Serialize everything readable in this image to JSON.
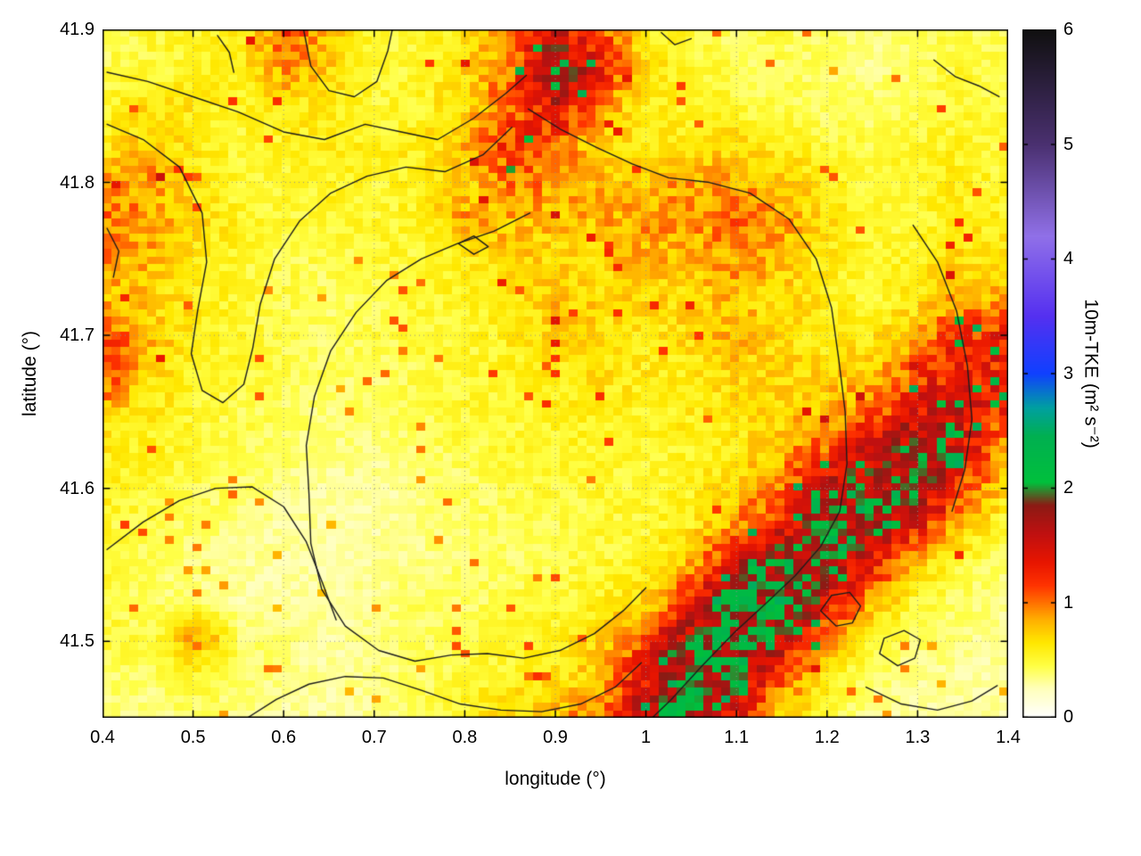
{
  "chart_data": {
    "type": "heatmap",
    "title": "",
    "xlabel": "longitude (°)",
    "ylabel": "latitude (°)",
    "colorbar_label": "10m-TKE (m² s⁻²)",
    "xlim": [
      0.4,
      1.4
    ],
    "ylim": [
      41.45,
      41.9
    ],
    "zlim": [
      0,
      6
    ],
    "grid_on": true,
    "x_ticks": [
      {
        "value": 0.4,
        "label": "0.4"
      },
      {
        "value": 0.5,
        "label": "0.5"
      },
      {
        "value": 0.6,
        "label": "0.6"
      },
      {
        "value": 0.7,
        "label": "0.7"
      },
      {
        "value": 0.8,
        "label": "0.8"
      },
      {
        "value": 0.9,
        "label": "0.9"
      },
      {
        "value": 1.0,
        "label": "1"
      },
      {
        "value": 1.1,
        "label": "1.1"
      },
      {
        "value": 1.2,
        "label": "1.2"
      },
      {
        "value": 1.3,
        "label": "1.3"
      },
      {
        "value": 1.4,
        "label": "1.4"
      }
    ],
    "y_ticks": [
      {
        "value": 41.5,
        "label": "41.5"
      },
      {
        "value": 41.6,
        "label": "41.6"
      },
      {
        "value": 41.7,
        "label": "41.7"
      },
      {
        "value": 41.8,
        "label": "41.8"
      },
      {
        "value": 41.9,
        "label": "41.9"
      }
    ],
    "cb_ticks": [
      {
        "value": 0,
        "label": "0"
      },
      {
        "value": 1,
        "label": "1"
      },
      {
        "value": 2,
        "label": "2"
      },
      {
        "value": 3,
        "label": "3"
      },
      {
        "value": 4,
        "label": "4"
      },
      {
        "value": 5,
        "label": "5"
      },
      {
        "value": 6,
        "label": "6"
      }
    ],
    "colormap": [
      [
        0.0,
        "#ffffff"
      ],
      [
        0.25,
        "#ffffbb"
      ],
      [
        0.45,
        "#ffff44"
      ],
      [
        0.65,
        "#ffe800"
      ],
      [
        0.85,
        "#ffb000"
      ],
      [
        1.0,
        "#ff7000"
      ],
      [
        1.15,
        "#ff3300"
      ],
      [
        1.35,
        "#e81500"
      ],
      [
        1.6,
        "#c01010"
      ],
      [
        1.85,
        "#8c1a14"
      ],
      [
        2.05,
        "#00c03c"
      ],
      [
        2.45,
        "#00b050"
      ],
      [
        2.7,
        "#00a0a0"
      ],
      [
        3.0,
        "#1040ff"
      ],
      [
        3.5,
        "#5530f0"
      ],
      [
        4.2,
        "#9070e8"
      ],
      [
        5.0,
        "#4a3070"
      ],
      [
        6.0,
        "#101010"
      ]
    ],
    "grid": {
      "lon0": 0.4,
      "dlon": 0.05,
      "lat0": 41.9,
      "dlat": -0.025,
      "ncols": 21,
      "nrows": 19,
      "values": [
        [
          0.4,
          0.5,
          0.5,
          0.6,
          1.1,
          0.8,
          0.5,
          0.5,
          0.6,
          0.9,
          1.5,
          1.2,
          0.6,
          0.5,
          0.4,
          0.45,
          0.4,
          0.35,
          0.4,
          0.45,
          0.4
        ],
        [
          0.45,
          0.5,
          0.55,
          0.6,
          0.9,
          0.7,
          0.5,
          0.5,
          0.7,
          1.0,
          2.0,
          1.3,
          0.7,
          0.5,
          0.45,
          0.4,
          0.4,
          0.35,
          0.4,
          0.5,
          0.45
        ],
        [
          0.5,
          0.7,
          0.6,
          0.55,
          0.6,
          0.6,
          0.5,
          0.55,
          0.7,
          1.1,
          1.4,
          0.9,
          0.6,
          0.55,
          0.5,
          0.45,
          0.4,
          0.4,
          0.45,
          0.5,
          0.45
        ],
        [
          0.6,
          0.8,
          0.6,
          0.5,
          0.55,
          0.6,
          0.55,
          0.6,
          0.8,
          1.2,
          1.0,
          0.7,
          0.6,
          0.6,
          0.7,
          0.6,
          0.5,
          0.45,
          0.5,
          0.55,
          0.5
        ],
        [
          0.9,
          0.9,
          0.6,
          0.5,
          0.5,
          0.55,
          0.5,
          0.6,
          0.7,
          1.0,
          0.9,
          0.8,
          0.8,
          0.9,
          0.9,
          0.8,
          0.6,
          0.5,
          0.55,
          0.6,
          0.5
        ],
        [
          1.0,
          0.9,
          0.7,
          0.55,
          0.5,
          0.5,
          0.5,
          0.55,
          0.9,
          0.8,
          0.8,
          0.8,
          0.9,
          0.9,
          1.0,
          0.9,
          0.7,
          0.5,
          0.5,
          0.6,
          0.6
        ],
        [
          0.9,
          0.8,
          0.6,
          0.5,
          0.45,
          0.45,
          0.5,
          0.5,
          0.6,
          0.7,
          0.7,
          0.7,
          0.8,
          0.8,
          0.9,
          0.8,
          0.6,
          0.5,
          0.55,
          0.7,
          0.6
        ],
        [
          0.8,
          0.7,
          0.6,
          0.5,
          0.45,
          0.4,
          0.45,
          0.5,
          0.55,
          0.6,
          0.8,
          0.7,
          0.7,
          0.7,
          0.8,
          0.7,
          0.6,
          0.5,
          0.6,
          0.9,
          0.8
        ],
        [
          1.1,
          0.8,
          0.6,
          0.5,
          0.45,
          0.4,
          0.45,
          0.5,
          0.5,
          0.6,
          0.7,
          0.7,
          0.6,
          0.7,
          0.8,
          0.7,
          0.6,
          0.6,
          0.8,
          1.2,
          1.3
        ],
        [
          1.2,
          0.7,
          0.55,
          0.5,
          0.45,
          0.4,
          0.4,
          0.45,
          0.5,
          0.55,
          0.6,
          0.65,
          0.6,
          0.6,
          0.7,
          0.7,
          0.7,
          0.8,
          1.1,
          1.4,
          1.3
        ],
        [
          0.7,
          0.6,
          0.5,
          0.45,
          0.4,
          0.35,
          0.4,
          0.45,
          0.5,
          0.5,
          0.55,
          0.6,
          0.55,
          0.6,
          0.65,
          0.7,
          0.8,
          1.0,
          1.4,
          1.5,
          1.2
        ],
        [
          0.6,
          0.55,
          0.5,
          0.45,
          0.4,
          0.35,
          0.35,
          0.4,
          0.45,
          0.5,
          0.5,
          0.55,
          0.5,
          0.55,
          0.6,
          0.8,
          1.1,
          1.5,
          1.9,
          1.5,
          0.9
        ],
        [
          0.6,
          0.5,
          0.45,
          0.4,
          0.35,
          0.3,
          0.3,
          0.35,
          0.4,
          0.45,
          0.5,
          0.5,
          0.5,
          0.55,
          0.7,
          1.0,
          1.5,
          1.9,
          1.8,
          1.2,
          0.7
        ],
        [
          0.5,
          0.45,
          0.4,
          0.35,
          0.3,
          0.3,
          0.3,
          0.35,
          0.4,
          0.4,
          0.45,
          0.5,
          0.5,
          0.6,
          0.9,
          1.3,
          1.8,
          1.9,
          1.4,
          0.8,
          0.5
        ],
        [
          0.5,
          0.4,
          0.35,
          0.3,
          0.3,
          0.28,
          0.3,
          0.35,
          0.4,
          0.4,
          0.45,
          0.5,
          0.55,
          0.8,
          1.4,
          2.0,
          1.9,
          1.4,
          0.8,
          0.5,
          0.4
        ],
        [
          0.45,
          0.4,
          0.35,
          0.3,
          0.3,
          0.3,
          0.35,
          0.4,
          0.4,
          0.45,
          0.5,
          0.55,
          0.7,
          1.2,
          2.0,
          2.1,
          1.5,
          0.9,
          0.5,
          0.4,
          0.35
        ],
        [
          0.5,
          0.45,
          0.9,
          0.4,
          0.35,
          0.3,
          0.35,
          0.4,
          0.45,
          0.5,
          0.55,
          0.7,
          1.1,
          1.8,
          2.1,
          1.7,
          1.0,
          0.5,
          0.4,
          0.35,
          0.3
        ],
        [
          0.4,
          0.4,
          0.5,
          0.4,
          0.35,
          0.3,
          0.35,
          0.4,
          0.5,
          0.55,
          0.6,
          0.8,
          1.4,
          2.0,
          1.8,
          1.1,
          0.6,
          0.4,
          0.35,
          0.3,
          0.3
        ],
        [
          0.35,
          0.35,
          0.4,
          0.35,
          0.3,
          0.3,
          0.35,
          0.45,
          0.55,
          0.7,
          0.8,
          1.0,
          1.7,
          2.0,
          1.4,
          0.8,
          0.5,
          0.35,
          0.3,
          0.3,
          0.3
        ]
      ]
    },
    "contours": [
      [
        [
          0.405,
          41.872
        ],
        [
          0.45,
          41.866
        ],
        [
          0.5,
          41.856
        ],
        [
          0.55,
          41.846
        ],
        [
          0.6,
          41.833
        ],
        [
          0.645,
          41.828
        ],
        [
          0.69,
          41.838
        ],
        [
          0.73,
          41.833
        ],
        [
          0.77,
          41.828
        ],
        [
          0.81,
          41.842
        ],
        [
          0.845,
          41.858
        ],
        [
          0.868,
          41.87
        ]
      ],
      [
        [
          0.405,
          41.838
        ],
        [
          0.445,
          41.828
        ],
        [
          0.485,
          41.81
        ],
        [
          0.51,
          41.78
        ],
        [
          0.515,
          41.748
        ],
        [
          0.505,
          41.716
        ],
        [
          0.498,
          41.688
        ],
        [
          0.51,
          41.664
        ],
        [
          0.533,
          41.656
        ],
        [
          0.556,
          41.668
        ],
        [
          0.566,
          41.692
        ],
        [
          0.574,
          41.72
        ],
        [
          0.59,
          41.75
        ],
        [
          0.618,
          41.775
        ],
        [
          0.652,
          41.793
        ],
        [
          0.692,
          41.804
        ],
        [
          0.735,
          41.81
        ],
        [
          0.778,
          41.807
        ],
        [
          0.82,
          41.818
        ],
        [
          0.852,
          41.836
        ]
      ],
      [
        [
          0.622,
          41.9
        ],
        [
          0.63,
          41.876
        ],
        [
          0.65,
          41.86
        ],
        [
          0.678,
          41.856
        ],
        [
          0.703,
          41.866
        ],
        [
          0.715,
          41.886
        ],
        [
          0.72,
          41.9
        ]
      ],
      [
        [
          0.87,
          41.848
        ],
        [
          0.905,
          41.835
        ],
        [
          0.945,
          41.823
        ],
        [
          0.985,
          41.812
        ],
        [
          1.025,
          41.803
        ],
        [
          1.07,
          41.8
        ],
        [
          1.115,
          41.793
        ],
        [
          1.158,
          41.776
        ],
        [
          1.188,
          41.75
        ],
        [
          1.205,
          41.718
        ],
        [
          1.213,
          41.684
        ],
        [
          1.22,
          41.65
        ],
        [
          1.222,
          41.616
        ],
        [
          1.214,
          41.585
        ],
        [
          1.193,
          41.562
        ],
        [
          1.165,
          41.543
        ],
        [
          1.133,
          41.525
        ],
        [
          1.098,
          41.506
        ],
        [
          1.062,
          41.484
        ],
        [
          1.028,
          41.462
        ],
        [
          1.0,
          41.446
        ]
      ],
      [
        [
          0.872,
          41.78
        ],
        [
          0.832,
          41.768
        ],
        [
          0.792,
          41.76
        ],
        [
          0.752,
          41.75
        ],
        [
          0.714,
          41.736
        ],
        [
          0.68,
          41.715
        ],
        [
          0.652,
          41.69
        ],
        [
          0.634,
          41.66
        ],
        [
          0.625,
          41.628
        ],
        [
          0.628,
          41.596
        ],
        [
          0.63,
          41.564
        ],
        [
          0.642,
          41.534
        ],
        [
          0.668,
          41.51
        ],
        [
          0.705,
          41.494
        ],
        [
          0.745,
          41.487
        ],
        [
          0.785,
          41.491
        ],
        [
          0.825,
          41.492
        ],
        [
          0.865,
          41.489
        ],
        [
          0.905,
          41.494
        ],
        [
          0.943,
          41.505
        ],
        [
          0.975,
          41.52
        ],
        [
          1.0,
          41.535
        ]
      ],
      [
        [
          0.405,
          41.56
        ],
        [
          0.445,
          41.578
        ],
        [
          0.485,
          41.592
        ],
        [
          0.525,
          41.6
        ],
        [
          0.565,
          41.601
        ],
        [
          0.6,
          41.588
        ],
        [
          0.625,
          41.565
        ],
        [
          0.643,
          41.538
        ],
        [
          0.658,
          41.514
        ]
      ],
      [
        [
          0.56,
          41.45
        ],
        [
          0.592,
          41.462
        ],
        [
          0.628,
          41.472
        ],
        [
          0.668,
          41.477
        ],
        [
          0.71,
          41.476
        ],
        [
          0.752,
          41.468
        ],
        [
          0.795,
          41.459
        ],
        [
          0.84,
          41.455
        ],
        [
          0.885,
          41.454
        ],
        [
          0.928,
          41.459
        ],
        [
          0.966,
          41.47
        ],
        [
          0.995,
          41.486
        ]
      ],
      [
        [
          0.405,
          41.77
        ],
        [
          0.418,
          41.755
        ],
        [
          0.412,
          41.738
        ]
      ],
      [
        [
          0.793,
          41.76
        ],
        [
          0.81,
          41.753
        ],
        [
          0.826,
          41.758
        ],
        [
          0.81,
          41.765
        ],
        [
          0.793,
          41.76
        ]
      ],
      [
        [
          1.193,
          41.52
        ],
        [
          1.21,
          41.51
        ],
        [
          1.228,
          41.512
        ],
        [
          1.237,
          41.523
        ],
        [
          1.225,
          41.532
        ],
        [
          1.205,
          41.53
        ],
        [
          1.193,
          41.52
        ]
      ],
      [
        [
          1.318,
          41.88
        ],
        [
          1.342,
          41.869
        ],
        [
          1.368,
          41.863
        ],
        [
          1.39,
          41.856
        ]
      ],
      [
        [
          1.017,
          41.898
        ],
        [
          1.032,
          41.89
        ],
        [
          1.05,
          41.894
        ]
      ],
      [
        [
          1.295,
          41.772
        ],
        [
          1.322,
          41.748
        ],
        [
          1.343,
          41.716
        ],
        [
          1.355,
          41.68
        ],
        [
          1.36,
          41.645
        ],
        [
          1.352,
          41.612
        ],
        [
          1.338,
          41.585
        ]
      ],
      [
        [
          1.243,
          41.47
        ],
        [
          1.282,
          41.459
        ],
        [
          1.322,
          41.455
        ],
        [
          1.36,
          41.461
        ],
        [
          1.388,
          41.471
        ]
      ],
      [
        [
          1.258,
          41.492
        ],
        [
          1.278,
          41.484
        ],
        [
          1.297,
          41.489
        ],
        [
          1.303,
          41.501
        ],
        [
          1.285,
          41.507
        ],
        [
          1.263,
          41.502
        ],
        [
          1.258,
          41.492
        ]
      ],
      [
        [
          0.527,
          41.896
        ],
        [
          0.54,
          41.885
        ],
        [
          0.545,
          41.872
        ]
      ]
    ]
  }
}
